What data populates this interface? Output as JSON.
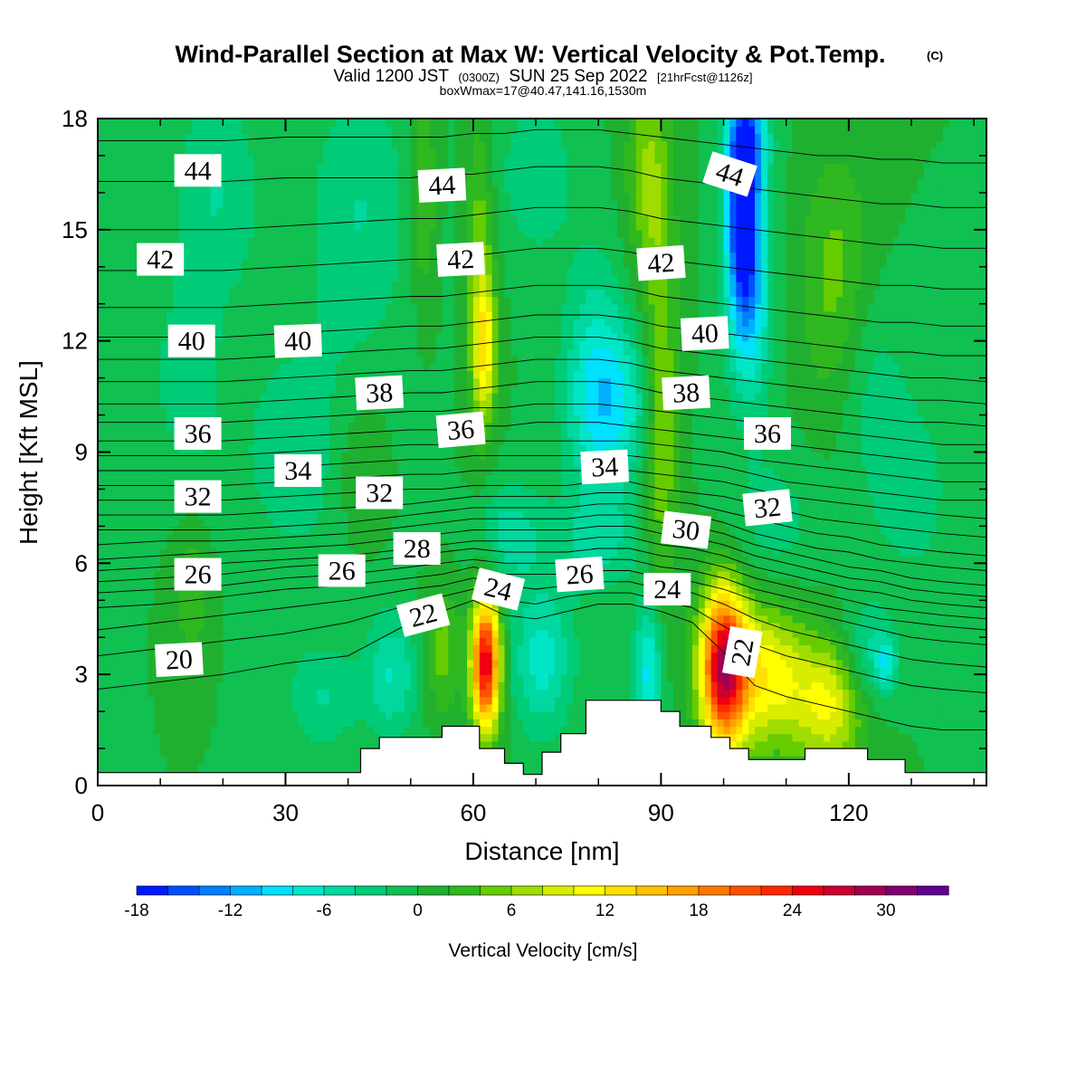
{
  "title": {
    "main": "Wind-Parallel Section at Max W: Vertical Velocity & Pot.Temp.",
    "main_mark": "(C)",
    "valid_prefix": "Valid 1200 JST",
    "valid_utc": "(0300Z)",
    "valid_date": "SUN 25 Sep 2022",
    "forecast": "[21hrFcst@1126z]",
    "box": "boxWmax=17@40.47,141.16,1530m"
  },
  "chart_data": {
    "type": "heatmap",
    "xlabel": "Distance [nm]",
    "ylabel": "Height [Kft MSL]",
    "xlim": [
      0,
      142
    ],
    "ylim": [
      0,
      18
    ],
    "x_ticks": [
      0,
      30,
      60,
      90,
      120
    ],
    "y_ticks": [
      0,
      3,
      6,
      9,
      12,
      15,
      18
    ],
    "field": "Vertical Velocity [cm/s]",
    "colorbar": {
      "label": "Vertical Velocity [cm/s]",
      "ticks": [
        -18,
        -12,
        -6,
        0,
        6,
        12,
        18,
        24,
        30
      ],
      "min": -18,
      "max": 34,
      "step": 2,
      "colors": [
        "#0018ff",
        "#0050ff",
        "#0080ff",
        "#00b0ff",
        "#00e0ff",
        "#00e6c8",
        "#00d8a0",
        "#00cc78",
        "#10c050",
        "#20b030",
        "#30b820",
        "#66cc00",
        "#a0dc00",
        "#d8ec00",
        "#ffff00",
        "#ffe000",
        "#ffc000",
        "#ffa000",
        "#ff7800",
        "#ff5000",
        "#ff2800",
        "#ee0010",
        "#c80030",
        "#a00050",
        "#800070",
        "#600090"
      ]
    },
    "background_w": 0,
    "w_features": [
      {
        "x": 62,
        "y": 3.3,
        "w": 26,
        "sx": 1.6,
        "sy": 1.3
      },
      {
        "x": 100,
        "y": 3.2,
        "w": 27,
        "sx": 2.6,
        "sy": 1.5
      },
      {
        "x": 107,
        "y": 3.0,
        "w": 11,
        "sx": 4.5,
        "sy": 1.4
      },
      {
        "x": 117,
        "y": 2.2,
        "w": 10,
        "sx": 4.0,
        "sy": 1.2
      },
      {
        "x": 71,
        "y": 3.4,
        "w": -7,
        "sx": 3.5,
        "sy": 1.4
      },
      {
        "x": 88,
        "y": 3.1,
        "w": -9,
        "sx": 1.6,
        "sy": 1.4
      },
      {
        "x": 47,
        "y": 3.0,
        "w": -6,
        "sx": 3.0,
        "sy": 1.2
      },
      {
        "x": 36,
        "y": 2.4,
        "w": -4,
        "sx": 4.0,
        "sy": 1.0
      },
      {
        "x": 55,
        "y": 3.6,
        "w": 5,
        "sx": 2.0,
        "sy": 1.2
      },
      {
        "x": 123,
        "y": 3.5,
        "w": -5,
        "sx": 3.0,
        "sy": 1.0
      },
      {
        "x": 126,
        "y": 3.3,
        "w": -6,
        "sx": 1.2,
        "sy": 0.5
      },
      {
        "x": 103,
        "y": 15.8,
        "w": -17,
        "sx": 1.8,
        "sy": 1.8
      },
      {
        "x": 104,
        "y": 13.2,
        "w": -10,
        "sx": 2.5,
        "sy": 2.0
      },
      {
        "x": 104,
        "y": 17.5,
        "w": -9,
        "sx": 2.5,
        "sy": 1.0
      },
      {
        "x": 83,
        "y": 10.3,
        "w": -7,
        "sx": 4.5,
        "sy": 1.6
      },
      {
        "x": 79,
        "y": 11.0,
        "w": -5,
        "sx": 3.5,
        "sy": 2.5
      },
      {
        "x": 62,
        "y": 11.8,
        "w": 9,
        "sx": 1.3,
        "sy": 1.3
      },
      {
        "x": 61,
        "y": 13.5,
        "w": 6,
        "sx": 1.5,
        "sy": 3.0
      },
      {
        "x": 52,
        "y": 16.0,
        "w": 5,
        "sx": 1.5,
        "sy": 2.0
      },
      {
        "x": 90,
        "y": 10.0,
        "w": 7,
        "sx": 2.0,
        "sy": 3.5
      },
      {
        "x": 88,
        "y": 16.5,
        "w": 6,
        "sx": 2.5,
        "sy": 2.0
      },
      {
        "x": 118,
        "y": 13.5,
        "w": 5,
        "sx": 4.0,
        "sy": 2.5
      },
      {
        "x": 19,
        "y": 16.0,
        "w": -4,
        "sx": 5.0,
        "sy": 2.0
      },
      {
        "x": 42,
        "y": 15.5,
        "w": -4,
        "sx": 6.0,
        "sy": 2.5
      },
      {
        "x": 70,
        "y": 16.5,
        "w": -4,
        "sx": 4.0,
        "sy": 1.5
      },
      {
        "x": 32,
        "y": 9.0,
        "w": -3,
        "sx": 8.0,
        "sy": 2.5
      },
      {
        "x": 14,
        "y": 11.0,
        "w": -3,
        "sx": 4.0,
        "sy": 2.0
      },
      {
        "x": 66,
        "y": 6.8,
        "w": -5,
        "sx": 4.0,
        "sy": 1.0
      },
      {
        "x": 80,
        "y": 6.5,
        "w": -4,
        "sx": 5.0,
        "sy": 0.9
      },
      {
        "x": 108,
        "y": 7.0,
        "w": -3,
        "sx": 5.0,
        "sy": 1.5
      },
      {
        "x": 130,
        "y": 8.0,
        "w": -3,
        "sx": 5.0,
        "sy": 2.0
      },
      {
        "x": 15,
        "y": 5.2,
        "w": 4,
        "sx": 2.0,
        "sy": 1.2
      },
      {
        "x": 42,
        "y": 8.5,
        "w": 3,
        "sx": 3.0,
        "sy": 1.5
      },
      {
        "x": 123,
        "y": 11.0,
        "w": -3,
        "sx": 4.0,
        "sy": 2.0
      }
    ],
    "terrain": {
      "x": [
        0,
        42,
        42,
        45,
        45,
        55,
        55,
        61,
        61,
        65,
        65,
        68,
        68,
        71,
        71,
        74,
        74,
        78,
        78,
        90,
        90,
        93,
        93,
        98,
        98,
        101,
        101,
        104,
        104,
        113,
        113,
        123,
        123,
        129,
        129,
        142
      ],
      "h": [
        0.35,
        0.35,
        1.0,
        1.0,
        1.3,
        1.3,
        1.6,
        1.6,
        1.0,
        1.0,
        0.6,
        0.6,
        0.3,
        0.3,
        0.9,
        0.9,
        1.4,
        1.4,
        2.3,
        2.3,
        2.0,
        2.0,
        1.6,
        1.6,
        1.3,
        1.3,
        1.0,
        1.0,
        0.7,
        0.7,
        1.0,
        1.0,
        0.7,
        0.7,
        0.35,
        0.35
      ]
    },
    "theta_contours": {
      "levels": [
        20,
        21,
        22,
        23,
        24,
        25,
        26,
        27,
        28,
        29,
        30,
        31,
        32,
        33,
        34,
        35,
        36,
        37,
        38,
        39,
        40,
        41,
        42,
        43,
        44,
        45
      ],
      "x": [
        0,
        10,
        20,
        30,
        40,
        50,
        55,
        60,
        65,
        70,
        75,
        80,
        85,
        90,
        95,
        100,
        105,
        110,
        115,
        120,
        125,
        130,
        135,
        142
      ],
      "heights": [
        [
          2.6,
          2.8,
          3.0,
          3.3,
          3.5,
          4.4,
          4.7,
          5.0,
          4.6,
          4.5,
          4.7,
          4.9,
          4.9,
          4.7,
          4.4,
          3.6,
          2.7,
          2.4,
          2.2,
          2.0,
          1.8,
          1.6,
          1.5,
          1.5
        ],
        [
          3.5,
          3.7,
          3.9,
          4.1,
          4.4,
          4.9,
          5.1,
          5.3,
          5.0,
          4.9,
          5.1,
          5.2,
          5.2,
          5.0,
          4.8,
          4.3,
          3.8,
          3.5,
          3.3,
          3.1,
          2.9,
          2.7,
          2.6,
          2.5
        ],
        [
          4.2,
          4.4,
          4.6,
          4.8,
          5.0,
          5.3,
          5.4,
          5.6,
          5.4,
          5.3,
          5.4,
          5.5,
          5.5,
          5.3,
          5.2,
          4.9,
          4.5,
          4.2,
          4.0,
          3.8,
          3.6,
          3.4,
          3.3,
          3.2
        ],
        [
          4.8,
          4.9,
          5.1,
          5.3,
          5.4,
          5.6,
          5.7,
          5.9,
          5.7,
          5.7,
          5.7,
          5.8,
          5.8,
          5.6,
          5.5,
          5.3,
          5.0,
          4.8,
          4.6,
          4.4,
          4.2,
          4.0,
          3.9,
          3.8
        ],
        [
          5.2,
          5.3,
          5.4,
          5.6,
          5.7,
          5.9,
          6.0,
          6.1,
          6.0,
          6.0,
          6.0,
          6.1,
          6.1,
          5.9,
          5.8,
          5.6,
          5.3,
          5.1,
          4.9,
          4.7,
          4.5,
          4.4,
          4.3,
          4.2
        ],
        [
          5.5,
          5.6,
          5.7,
          5.9,
          6.0,
          6.2,
          6.3,
          6.4,
          6.3,
          6.3,
          6.3,
          6.4,
          6.4,
          6.2,
          6.1,
          5.9,
          5.6,
          5.4,
          5.2,
          5.0,
          4.8,
          4.7,
          4.6,
          4.5
        ],
        [
          5.8,
          5.9,
          6.0,
          6.1,
          6.2,
          6.4,
          6.5,
          6.6,
          6.6,
          6.6,
          6.6,
          6.7,
          6.7,
          6.5,
          6.4,
          6.2,
          5.9,
          5.7,
          5.5,
          5.3,
          5.2,
          5.0,
          4.9,
          4.8
        ],
        [
          6.1,
          6.2,
          6.3,
          6.4,
          6.5,
          6.7,
          6.8,
          6.9,
          6.9,
          6.9,
          6.9,
          7.0,
          7.0,
          6.8,
          6.7,
          6.5,
          6.2,
          6.0,
          5.8,
          5.6,
          5.5,
          5.3,
          5.2,
          5.1
        ],
        [
          6.5,
          6.6,
          6.6,
          6.7,
          6.8,
          7.0,
          7.1,
          7.2,
          7.2,
          7.2,
          7.2,
          7.3,
          7.3,
          7.1,
          7.0,
          6.8,
          6.5,
          6.3,
          6.1,
          5.9,
          5.8,
          5.6,
          5.5,
          5.4
        ],
        [
          6.9,
          6.9,
          6.9,
          7.0,
          7.1,
          7.3,
          7.4,
          7.5,
          7.5,
          7.5,
          7.5,
          7.6,
          7.6,
          7.4,
          7.3,
          7.1,
          6.8,
          6.6,
          6.4,
          6.3,
          6.1,
          6.0,
          5.9,
          5.8
        ],
        [
          7.3,
          7.3,
          7.3,
          7.4,
          7.5,
          7.6,
          7.7,
          7.8,
          7.8,
          7.8,
          7.8,
          7.9,
          7.9,
          7.7,
          7.6,
          7.4,
          7.2,
          7.0,
          6.8,
          6.7,
          6.5,
          6.4,
          6.3,
          6.2
        ],
        [
          7.7,
          7.7,
          7.7,
          7.8,
          7.9,
          8.0,
          8.0,
          8.1,
          8.1,
          8.1,
          8.1,
          8.2,
          8.2,
          8.0,
          7.9,
          7.8,
          7.6,
          7.4,
          7.2,
          7.1,
          7.0,
          6.9,
          6.8,
          6.7
        ],
        [
          8.1,
          8.1,
          8.1,
          8.2,
          8.3,
          8.4,
          8.4,
          8.5,
          8.5,
          8.5,
          8.5,
          8.5,
          8.5,
          8.4,
          8.3,
          8.2,
          8.0,
          7.8,
          7.7,
          7.6,
          7.5,
          7.4,
          7.3,
          7.2
        ],
        [
          8.5,
          8.5,
          8.5,
          8.6,
          8.7,
          8.8,
          8.8,
          8.9,
          8.9,
          8.9,
          8.9,
          8.9,
          8.9,
          8.8,
          8.7,
          8.6,
          8.4,
          8.2,
          8.1,
          8.0,
          7.9,
          7.8,
          7.7,
          7.7
        ],
        [
          8.9,
          8.9,
          8.9,
          9.0,
          9.1,
          9.2,
          9.2,
          9.3,
          9.3,
          9.3,
          9.3,
          9.3,
          9.3,
          9.2,
          9.1,
          9.0,
          8.8,
          8.7,
          8.6,
          8.5,
          8.4,
          8.3,
          8.2,
          8.2
        ],
        [
          9.3,
          9.3,
          9.3,
          9.4,
          9.5,
          9.6,
          9.6,
          9.7,
          9.7,
          9.8,
          9.8,
          9.8,
          9.7,
          9.6,
          9.5,
          9.4,
          9.3,
          9.2,
          9.1,
          9.0,
          8.9,
          8.8,
          8.7,
          8.7
        ],
        [
          9.8,
          9.8,
          9.8,
          9.9,
          10.0,
          10.1,
          10.1,
          10.2,
          10.2,
          10.3,
          10.3,
          10.3,
          10.2,
          10.1,
          10.0,
          9.9,
          9.8,
          9.7,
          9.6,
          9.5,
          9.4,
          9.3,
          9.2,
          9.2
        ],
        [
          10.3,
          10.3,
          10.3,
          10.4,
          10.5,
          10.6,
          10.6,
          10.7,
          10.8,
          10.9,
          10.9,
          10.9,
          10.8,
          10.6,
          10.5,
          10.4,
          10.3,
          10.2,
          10.1,
          10.0,
          9.9,
          9.8,
          9.8,
          9.7
        ],
        [
          10.9,
          10.9,
          10.9,
          11.0,
          11.1,
          11.2,
          11.2,
          11.3,
          11.4,
          11.5,
          11.5,
          11.5,
          11.4,
          11.2,
          11.1,
          11.0,
          10.9,
          10.8,
          10.7,
          10.6,
          10.5,
          10.4,
          10.4,
          10.3
        ],
        [
          11.5,
          11.5,
          11.5,
          11.6,
          11.7,
          11.8,
          11.8,
          11.9,
          12.0,
          12.1,
          12.1,
          12.1,
          12.0,
          11.8,
          11.7,
          11.6,
          11.5,
          11.4,
          11.3,
          11.2,
          11.1,
          11.0,
          11.0,
          10.9
        ],
        [
          12.1,
          12.1,
          12.1,
          12.2,
          12.3,
          12.4,
          12.4,
          12.5,
          12.6,
          12.7,
          12.7,
          12.7,
          12.6,
          12.4,
          12.3,
          12.2,
          12.1,
          12.0,
          11.9,
          11.8,
          11.7,
          11.7,
          11.6,
          11.6
        ],
        [
          12.9,
          12.9,
          12.9,
          13.0,
          13.1,
          13.2,
          13.2,
          13.3,
          13.4,
          13.5,
          13.5,
          13.5,
          13.4,
          13.2,
          13.1,
          13.0,
          12.9,
          12.8,
          12.7,
          12.6,
          12.5,
          12.5,
          12.4,
          12.4
        ],
        [
          13.9,
          13.9,
          13.9,
          14.0,
          14.1,
          14.2,
          14.2,
          14.3,
          14.4,
          14.5,
          14.5,
          14.5,
          14.4,
          14.2,
          14.1,
          14.0,
          13.9,
          13.8,
          13.7,
          13.6,
          13.5,
          13.5,
          13.4,
          13.4
        ],
        [
          15.0,
          15.0,
          15.0,
          15.1,
          15.2,
          15.3,
          15.3,
          15.4,
          15.5,
          15.6,
          15.6,
          15.6,
          15.5,
          15.3,
          15.2,
          15.1,
          15.0,
          14.9,
          14.8,
          14.7,
          14.6,
          14.6,
          14.5,
          14.5
        ],
        [
          16.3,
          16.3,
          16.3,
          16.4,
          16.4,
          16.4,
          16.5,
          16.5,
          16.6,
          16.7,
          16.7,
          16.7,
          16.6,
          16.4,
          16.3,
          16.2,
          16.1,
          16.0,
          15.9,
          15.8,
          15.7,
          15.7,
          15.6,
          15.6
        ],
        [
          17.4,
          17.4,
          17.4,
          17.5,
          17.5,
          17.5,
          17.5,
          17.6,
          17.6,
          17.7,
          17.7,
          17.7,
          17.6,
          17.5,
          17.4,
          17.3,
          17.2,
          17.1,
          17.0,
          17.0,
          16.9,
          16.9,
          16.8,
          16.8
        ]
      ]
    },
    "contour_labels": [
      {
        "text": "44",
        "x": 16,
        "y": 16.6,
        "rot": 0
      },
      {
        "text": "44",
        "x": 55,
        "y": 16.2,
        "rot": -3
      },
      {
        "text": "44",
        "x": 101,
        "y": 16.5,
        "rot": 18
      },
      {
        "text": "42",
        "x": 10,
        "y": 14.2,
        "rot": 0
      },
      {
        "text": "42",
        "x": 58,
        "y": 14.2,
        "rot": -3
      },
      {
        "text": "42",
        "x": 90,
        "y": 14.1,
        "rot": -4
      },
      {
        "text": "40",
        "x": 15,
        "y": 12.0,
        "rot": 0
      },
      {
        "text": "40",
        "x": 32,
        "y": 12.0,
        "rot": -2
      },
      {
        "text": "40",
        "x": 97,
        "y": 12.2,
        "rot": -3
      },
      {
        "text": "38",
        "x": 45,
        "y": 10.6,
        "rot": -3
      },
      {
        "text": "38",
        "x": 94,
        "y": 10.6,
        "rot": -3
      },
      {
        "text": "36",
        "x": 16,
        "y": 9.5,
        "rot": 0
      },
      {
        "text": "36",
        "x": 58,
        "y": 9.6,
        "rot": -5
      },
      {
        "text": "36",
        "x": 107,
        "y": 9.5,
        "rot": 0
      },
      {
        "text": "34",
        "x": 32,
        "y": 8.5,
        "rot": 0
      },
      {
        "text": "34",
        "x": 81,
        "y": 8.6,
        "rot": -3
      },
      {
        "text": "32",
        "x": 16,
        "y": 7.8,
        "rot": 0
      },
      {
        "text": "32",
        "x": 45,
        "y": 7.9,
        "rot": 0
      },
      {
        "text": "32",
        "x": 107,
        "y": 7.5,
        "rot": -6
      },
      {
        "text": "30",
        "x": 94,
        "y": 6.9,
        "rot": 7
      },
      {
        "text": "28",
        "x": 51,
        "y": 6.4,
        "rot": 0
      },
      {
        "text": "26",
        "x": 16,
        "y": 5.7,
        "rot": 0
      },
      {
        "text": "26",
        "x": 39,
        "y": 5.8,
        "rot": 0
      },
      {
        "text": "26",
        "x": 77,
        "y": 5.7,
        "rot": -4
      },
      {
        "text": "24",
        "x": 64,
        "y": 5.3,
        "rot": 14
      },
      {
        "text": "24",
        "x": 91,
        "y": 5.3,
        "rot": 0
      },
      {
        "text": "22",
        "x": 52,
        "y": 4.6,
        "rot": -15
      },
      {
        "text": "22",
        "x": 103,
        "y": 3.6,
        "rot": -80
      },
      {
        "text": "20",
        "x": 13,
        "y": 3.4,
        "rot": -3
      }
    ]
  }
}
